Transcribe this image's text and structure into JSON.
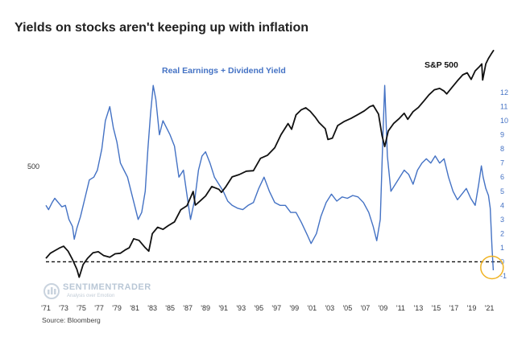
{
  "chart_data": {
    "type": "line",
    "title": "Yields on stocks aren't keeping up with inflation",
    "source": "Source: Bloomberg",
    "watermark": {
      "name": "SENTIMENTRADER",
      "tagline": "Analysis over Emotion"
    },
    "left_axis": {
      "ticks": [
        "500"
      ],
      "scale": "log"
    },
    "right_axis": {
      "ticks": [
        "12",
        "11",
        "10",
        "9",
        "8",
        "7",
        "6",
        "5",
        "4",
        "3",
        "2",
        "1",
        "0",
        "-1"
      ],
      "ylim": [
        -1,
        12
      ]
    },
    "x_ticks": [
      "'71",
      "'73",
      "'75",
      "'77",
      "'79",
      "'81",
      "'83",
      "'85",
      "'87",
      "'89",
      "'91",
      "'93",
      "'95",
      "'97",
      "'99",
      "'01",
      "'03",
      "'05",
      "'07",
      "'09",
      "'11",
      "'13",
      "'15",
      "'17",
      "'19",
      "'21"
    ],
    "zero_line": {
      "y": 0,
      "style": "dashed"
    },
    "highlight": {
      "x": 2021.3,
      "y": -0.4,
      "color": "#f0b323",
      "shape": "circle"
    },
    "colors": {
      "blue": "#4472c4",
      "black": "#111111",
      "highlight": "#f0b323"
    },
    "series": [
      {
        "name": "Real Earnings + Dividend Yield",
        "axis": "right",
        "color": "#4472c4",
        "x": [
          1971.0,
          1971.3,
          1971.7,
          1972.0,
          1972.4,
          1972.8,
          1973.2,
          1973.6,
          1974.0,
          1974.2,
          1974.5,
          1974.9,
          1975.4,
          1975.9,
          1976.4,
          1976.8,
          1977.3,
          1977.7,
          1978.2,
          1978.6,
          1979.0,
          1979.4,
          1979.8,
          1980.2,
          1980.6,
          1981.0,
          1981.4,
          1981.8,
          1982.2,
          1982.5,
          1982.8,
          1983.1,
          1983.4,
          1983.8,
          1984.2,
          1984.6,
          1985.0,
          1985.5,
          1986.0,
          1986.5,
          1987.0,
          1987.3,
          1987.8,
          1988.2,
          1988.6,
          1989.0,
          1989.5,
          1990.0,
          1990.5,
          1991.0,
          1991.5,
          1992.0,
          1992.6,
          1993.2,
          1993.8,
          1994.4,
          1995.0,
          1995.6,
          1996.2,
          1996.8,
          1997.4,
          1998.0,
          1998.6,
          1999.2,
          1999.8,
          2000.4,
          2000.9,
          2001.5,
          2002.0,
          2002.6,
          2003.2,
          2003.8,
          2004.4,
          2005.0,
          2005.6,
          2006.2,
          2006.8,
          2007.4,
          2007.9,
          2008.3,
          2008.7,
          2009.0,
          2009.2,
          2009.5,
          2009.9,
          2010.4,
          2010.9,
          2011.4,
          2011.9,
          2012.4,
          2012.9,
          2013.4,
          2013.9,
          2014.4,
          2014.9,
          2015.4,
          2015.9,
          2016.4,
          2016.9,
          2017.4,
          2017.9,
          2018.4,
          2018.9,
          2019.4,
          2019.8,
          2020.1,
          2020.3,
          2020.6,
          2020.9,
          2021.1,
          2021.3,
          2021.45
        ],
        "y": [
          4.0,
          3.7,
          4.2,
          4.5,
          4.2,
          3.9,
          4.0,
          3.0,
          2.5,
          1.6,
          2.4,
          3.2,
          4.5,
          5.8,
          6.0,
          6.5,
          8.0,
          10.0,
          11.0,
          9.5,
          8.5,
          7.0,
          6.5,
          6.0,
          5.0,
          4.0,
          3.0,
          3.5,
          5.0,
          8.0,
          10.5,
          12.5,
          11.5,
          9.0,
          10.0,
          9.5,
          9.0,
          8.2,
          6.0,
          6.5,
          4.3,
          3.0,
          4.5,
          6.5,
          7.5,
          7.8,
          7.0,
          6.0,
          5.5,
          5.0,
          4.3,
          4.0,
          3.8,
          3.7,
          4.0,
          4.2,
          5.2,
          6.0,
          5.0,
          4.2,
          4.0,
          4.0,
          3.5,
          3.5,
          2.8,
          2.0,
          1.3,
          2.0,
          3.2,
          4.2,
          4.8,
          4.3,
          4.6,
          4.5,
          4.7,
          4.6,
          4.2,
          3.5,
          2.5,
          1.5,
          3.0,
          9.0,
          12.5,
          7.5,
          5.0,
          5.5,
          6.0,
          6.5,
          6.2,
          5.5,
          6.5,
          7.0,
          7.3,
          7.0,
          7.5,
          7.0,
          7.3,
          6.0,
          5.0,
          4.4,
          4.8,
          5.2,
          4.5,
          4.0,
          5.5,
          6.8,
          6.0,
          5.2,
          4.7,
          3.8,
          1.0,
          -0.6
        ]
      },
      {
        "name": "S&P 500",
        "axis": "left",
        "color": "#111111",
        "x": [
          1971.0,
          1971.5,
          1972.0,
          1972.6,
          1973.0,
          1973.5,
          1974.0,
          1974.5,
          1974.75,
          1975.2,
          1975.7,
          1976.3,
          1976.9,
          1977.5,
          1978.2,
          1978.8,
          1979.4,
          1980.0,
          1980.4,
          1980.9,
          1981.5,
          1982.2,
          1982.6,
          1983.0,
          1983.6,
          1984.2,
          1984.8,
          1985.5,
          1986.2,
          1986.9,
          1987.6,
          1987.85,
          1988.4,
          1989.0,
          1989.7,
          1990.5,
          1990.8,
          1991.3,
          1992.0,
          1992.8,
          1993.6,
          1994.4,
          1995.2,
          1996.0,
          1996.8,
          1997.5,
          1998.3,
          1998.7,
          1999.2,
          1999.8,
          2000.3,
          2000.8,
          2001.4,
          2001.8,
          2002.5,
          2002.8,
          2003.3,
          2003.9,
          2004.6,
          2005.4,
          2006.2,
          2006.9,
          2007.5,
          2007.9,
          2008.5,
          2008.9,
          2009.2,
          2009.6,
          2010.2,
          2010.8,
          2011.4,
          2011.8,
          2012.4,
          2013.0,
          2013.6,
          2014.2,
          2014.8,
          2015.4,
          2015.9,
          2016.2,
          2016.8,
          2017.4,
          2018.0,
          2018.5,
          2018.95,
          2019.4,
          2019.9,
          2020.15,
          2020.25,
          2020.6,
          2020.9,
          2021.2,
          2021.5
        ],
        "y": [
          92,
          101,
          106,
          112,
          115,
          105,
          90,
          75,
          65,
          82,
          92,
          102,
          104,
          97,
          94,
          100,
          101,
          108,
          112,
          132,
          128,
          112,
          105,
          145,
          163,
          157,
          168,
          180,
          225,
          242,
          315,
          245,
          265,
          290,
          345,
          328,
          310,
          345,
          412,
          430,
          458,
          462,
          580,
          615,
          705,
          895,
          1100,
          990,
          1290,
          1420,
          1470,
          1380,
          1230,
          1120,
          1000,
          820,
          840,
          1060,
          1140,
          1210,
          1300,
          1390,
          1500,
          1540,
          1310,
          880,
          720,
          960,
          1100,
          1200,
          1330,
          1190,
          1370,
          1480,
          1660,
          1870,
          2050,
          2100,
          2000,
          1900,
          2150,
          2420,
          2700,
          2800,
          2480,
          2900,
          3150,
          3300,
          2450,
          3300,
          3650,
          3950,
          4250
        ]
      }
    ]
  },
  "annotations": {
    "blue_label": "Real Earnings + Dividend Yield",
    "black_label": "S&P 500"
  }
}
